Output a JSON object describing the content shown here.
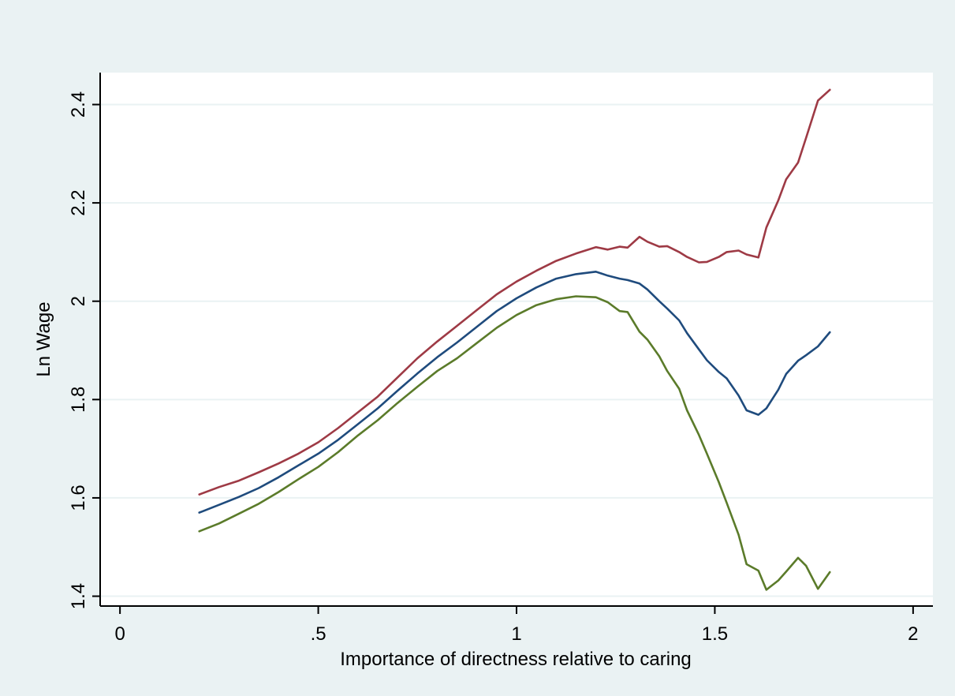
{
  "chart_data": {
    "type": "line",
    "title": "",
    "xlabel": "Importance of directness relative to caring",
    "ylabel": "Ln Wage",
    "xlim": [
      -0.05,
      2.05
    ],
    "ylim": [
      1.38,
      2.465
    ],
    "xticks": [
      {
        "value": 0,
        "label": "0"
      },
      {
        "value": 0.5,
        "label": ".5"
      },
      {
        "value": 1,
        "label": "1"
      },
      {
        "value": 1.5,
        "label": "1.5"
      },
      {
        "value": 2,
        "label": "2"
      }
    ],
    "yticks": [
      {
        "value": 1.4,
        "label": "1.4"
      },
      {
        "value": 1.6,
        "label": "1.6"
      },
      {
        "value": 1.8,
        "label": "1.8"
      },
      {
        "value": 2.0,
        "label": "2"
      },
      {
        "value": 2.2,
        "label": "2.2"
      },
      {
        "value": 2.4,
        "label": "2.4"
      }
    ],
    "grid": true,
    "colors": {
      "background": "#eaf2f3",
      "plot_area": "#ffffff",
      "grid": "#eaf2f3",
      "axis": "#000000"
    },
    "series": [
      {
        "color": "#9e3a45",
        "points": [
          [
            0.2,
            1.607
          ],
          [
            0.25,
            1.622
          ],
          [
            0.3,
            1.635
          ],
          [
            0.35,
            1.652
          ],
          [
            0.4,
            1.67
          ],
          [
            0.45,
            1.69
          ],
          [
            0.5,
            1.713
          ],
          [
            0.55,
            1.742
          ],
          [
            0.6,
            1.774
          ],
          [
            0.65,
            1.806
          ],
          [
            0.7,
            1.845
          ],
          [
            0.75,
            1.884
          ],
          [
            0.8,
            1.918
          ],
          [
            0.85,
            1.95
          ],
          [
            0.9,
            1.982
          ],
          [
            0.95,
            2.014
          ],
          [
            1.0,
            2.04
          ],
          [
            1.05,
            2.062
          ],
          [
            1.1,
            2.082
          ],
          [
            1.15,
            2.097
          ],
          [
            1.2,
            2.11
          ],
          [
            1.23,
            2.105
          ],
          [
            1.26,
            2.111
          ],
          [
            1.28,
            2.109
          ],
          [
            1.31,
            2.131
          ],
          [
            1.33,
            2.121
          ],
          [
            1.36,
            2.111
          ],
          [
            1.38,
            2.112
          ],
          [
            1.41,
            2.1
          ],
          [
            1.43,
            2.09
          ],
          [
            1.46,
            2.079
          ],
          [
            1.48,
            2.08
          ],
          [
            1.51,
            2.09
          ],
          [
            1.53,
            2.1
          ],
          [
            1.56,
            2.103
          ],
          [
            1.58,
            2.095
          ],
          [
            1.61,
            2.089
          ],
          [
            1.63,
            2.15
          ],
          [
            1.66,
            2.205
          ],
          [
            1.68,
            2.248
          ],
          [
            1.71,
            2.282
          ],
          [
            1.73,
            2.332
          ],
          [
            1.76,
            2.408
          ],
          [
            1.79,
            2.43
          ]
        ]
      },
      {
        "color": "#1f4b7d",
        "points": [
          [
            0.2,
            1.57
          ],
          [
            0.25,
            1.586
          ],
          [
            0.3,
            1.602
          ],
          [
            0.35,
            1.62
          ],
          [
            0.4,
            1.642
          ],
          [
            0.45,
            1.666
          ],
          [
            0.5,
            1.69
          ],
          [
            0.55,
            1.718
          ],
          [
            0.6,
            1.75
          ],
          [
            0.65,
            1.782
          ],
          [
            0.7,
            1.818
          ],
          [
            0.75,
            1.853
          ],
          [
            0.8,
            1.886
          ],
          [
            0.85,
            1.916
          ],
          [
            0.9,
            1.948
          ],
          [
            0.95,
            1.98
          ],
          [
            1.0,
            2.006
          ],
          [
            1.05,
            2.028
          ],
          [
            1.1,
            2.046
          ],
          [
            1.15,
            2.055
          ],
          [
            1.2,
            2.06
          ],
          [
            1.23,
            2.052
          ],
          [
            1.26,
            2.046
          ],
          [
            1.28,
            2.043
          ],
          [
            1.31,
            2.036
          ],
          [
            1.33,
            2.024
          ],
          [
            1.36,
            2.0
          ],
          [
            1.38,
            1.985
          ],
          [
            1.41,
            1.961
          ],
          [
            1.43,
            1.935
          ],
          [
            1.46,
            1.902
          ],
          [
            1.48,
            1.88
          ],
          [
            1.51,
            1.856
          ],
          [
            1.53,
            1.843
          ],
          [
            1.56,
            1.808
          ],
          [
            1.58,
            1.778
          ],
          [
            1.61,
            1.769
          ],
          [
            1.63,
            1.782
          ],
          [
            1.66,
            1.82
          ],
          [
            1.68,
            1.852
          ],
          [
            1.71,
            1.879
          ],
          [
            1.73,
            1.89
          ],
          [
            1.76,
            1.908
          ],
          [
            1.79,
            1.937
          ]
        ]
      },
      {
        "color": "#5b7b2a",
        "points": [
          [
            0.2,
            1.532
          ],
          [
            0.25,
            1.548
          ],
          [
            0.3,
            1.568
          ],
          [
            0.35,
            1.588
          ],
          [
            0.4,
            1.612
          ],
          [
            0.45,
            1.638
          ],
          [
            0.5,
            1.663
          ],
          [
            0.55,
            1.693
          ],
          [
            0.6,
            1.727
          ],
          [
            0.65,
            1.758
          ],
          [
            0.7,
            1.793
          ],
          [
            0.75,
            1.826
          ],
          [
            0.8,
            1.858
          ],
          [
            0.85,
            1.884
          ],
          [
            0.9,
            1.915
          ],
          [
            0.95,
            1.946
          ],
          [
            1.0,
            1.972
          ],
          [
            1.05,
            1.992
          ],
          [
            1.1,
            2.004
          ],
          [
            1.15,
            2.01
          ],
          [
            1.2,
            2.008
          ],
          [
            1.23,
            1.998
          ],
          [
            1.26,
            1.98
          ],
          [
            1.28,
            1.978
          ],
          [
            1.31,
            1.938
          ],
          [
            1.33,
            1.922
          ],
          [
            1.36,
            1.888
          ],
          [
            1.38,
            1.858
          ],
          [
            1.41,
            1.822
          ],
          [
            1.43,
            1.778
          ],
          [
            1.46,
            1.728
          ],
          [
            1.48,
            1.69
          ],
          [
            1.51,
            1.632
          ],
          [
            1.53,
            1.59
          ],
          [
            1.56,
            1.525
          ],
          [
            1.58,
            1.465
          ],
          [
            1.61,
            1.452
          ],
          [
            1.63,
            1.413
          ],
          [
            1.66,
            1.432
          ],
          [
            1.68,
            1.45
          ],
          [
            1.71,
            1.478
          ],
          [
            1.73,
            1.462
          ],
          [
            1.76,
            1.415
          ],
          [
            1.79,
            1.449
          ]
        ]
      }
    ]
  }
}
